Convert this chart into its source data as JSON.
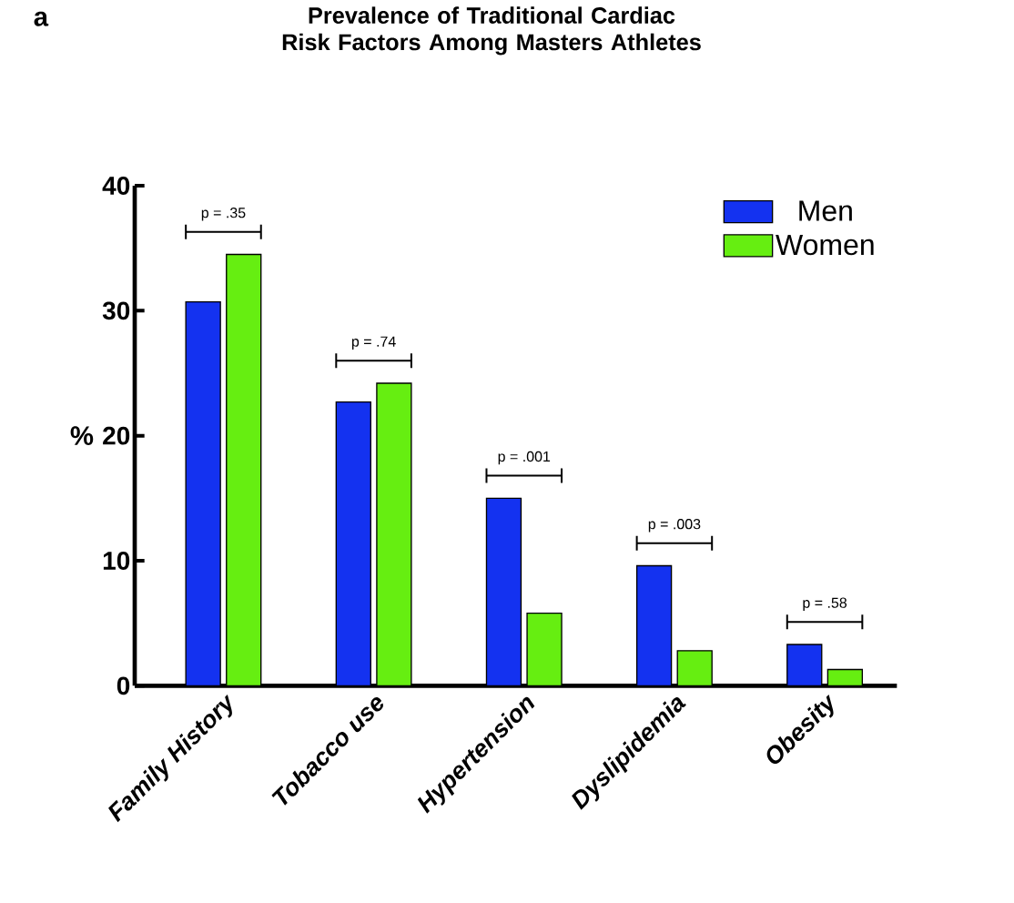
{
  "chart_data": {
    "type": "bar",
    "title": "Prevalence of Traditional Cardiac Risk Factors Among Masters Athletes",
    "ylabel": "%",
    "categories": [
      "Family History",
      "Tobacco use",
      "Hypertension",
      "Dyslipidemia",
      "Obesity"
    ],
    "series": [
      {
        "name": "Men",
        "color": "#1432f0",
        "values": [
          30.7,
          22.7,
          15.0,
          9.6,
          3.3
        ]
      },
      {
        "name": "Women",
        "color": "#66ee11",
        "values": [
          34.5,
          24.2,
          5.8,
          2.8,
          1.3
        ]
      }
    ],
    "ylim": [
      0,
      40
    ],
    "yticks": [
      0,
      10,
      20,
      30,
      40
    ],
    "grid": false,
    "legend": "top right",
    "annotations": [
      "p = .35",
      "p = .74",
      "p = .001",
      "p = .003",
      "p = .58",
      "a"
    ]
  }
}
